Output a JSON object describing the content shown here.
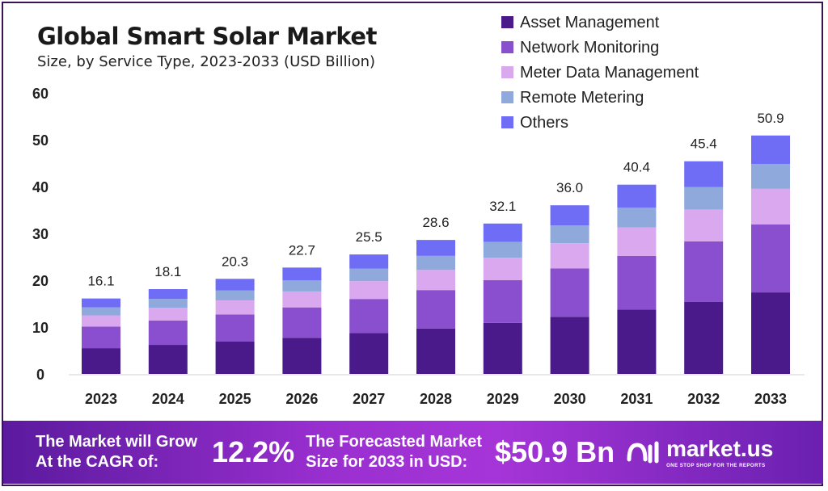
{
  "chart_data": {
    "type": "bar",
    "stacked": true,
    "title": "Global Smart Solar Market",
    "subtitle": "Size, by Service Type, 2023-2033 (USD Billion)",
    "categories": [
      "2023",
      "2024",
      "2025",
      "2026",
      "2027",
      "2028",
      "2029",
      "2030",
      "2031",
      "2032",
      "2033"
    ],
    "totals": [
      "16.1",
      "18.1",
      "20.3",
      "22.7",
      "25.5",
      "28.6",
      "32.1",
      "36.0",
      "40.4",
      "45.4",
      "50.9"
    ],
    "series": [
      {
        "name": "Asset Management",
        "color": "#4a1a8a",
        "values": [
          5.5,
          6.2,
          6.9,
          7.7,
          8.7,
          9.7,
          10.9,
          12.2,
          13.7,
          15.4,
          17.4
        ]
      },
      {
        "name": "Network Monitoring",
        "color": "#8a4fcf",
        "values": [
          4.6,
          5.2,
          5.8,
          6.5,
          7.3,
          8.2,
          9.1,
          10.3,
          11.5,
          12.9,
          14.5
        ]
      },
      {
        "name": "Meter Data Management",
        "color": "#d9a8ef",
        "values": [
          2.4,
          2.7,
          3.0,
          3.4,
          3.8,
          4.3,
          4.8,
          5.4,
          6.1,
          6.8,
          7.6
        ]
      },
      {
        "name": "Remote Metering",
        "color": "#8fa9dd",
        "values": [
          1.7,
          1.9,
          2.1,
          2.4,
          2.7,
          3.0,
          3.4,
          3.8,
          4.2,
          4.8,
          5.3
        ]
      },
      {
        "name": "Others",
        "color": "#6f6cf5",
        "values": [
          1.9,
          2.1,
          2.5,
          2.7,
          3.0,
          3.4,
          3.9,
          4.3,
          4.9,
          5.5,
          6.1
        ]
      }
    ],
    "ylim": [
      0,
      60
    ],
    "yticks": [
      "0",
      "10",
      "20",
      "30",
      "40",
      "50",
      "60"
    ],
    "grid": false,
    "legend": "top-right"
  },
  "banner": {
    "cagr_label_1": "The Market will Grow",
    "cagr_label_2": "At the CAGR of:",
    "cagr_value": "12.2%",
    "forecast_label_1": "The Forecasted Market",
    "forecast_label_2": "Size for 2033 in USD:",
    "forecast_value": "$50.9 Bn",
    "logo_text": "market.us",
    "logo_tagline": "ONE STOP SHOP FOR THE REPORTS"
  }
}
